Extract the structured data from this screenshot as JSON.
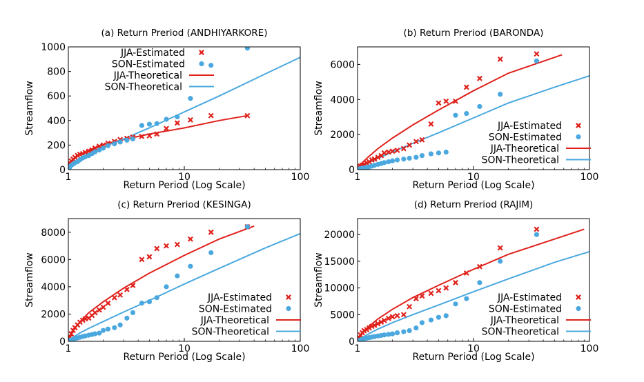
{
  "figure": {
    "jja_color": "#e0211b",
    "son_color": "#4aa8df"
  },
  "chart_data": [
    {
      "type": "scatter",
      "title": "(a) Return Preriod (ANDHIYARKORE)",
      "xlabel": "Return Period (Log Scale)",
      "ylabel": "Streamflow",
      "xscale": "log",
      "xlim": [
        1,
        100
      ],
      "ylim": [
        0,
        1000
      ],
      "xticks": [
        1,
        10,
        100
      ],
      "yticks": [
        0,
        200,
        400,
        600,
        800,
        1000
      ],
      "legend_position": "upper-left",
      "series": [
        {
          "name": "JJA-Estimated",
          "kind": "points",
          "color": "#e0211b",
          "marker": "x",
          "x": [
            1.0,
            1.03,
            1.06,
            1.1,
            1.14,
            1.2,
            1.26,
            1.33,
            1.4,
            1.5,
            1.6,
            1.7,
            1.85,
            2.0,
            2.2,
            2.5,
            2.8,
            3.2,
            3.6,
            4.3,
            5.0,
            5.8,
            7.0,
            8.7,
            11.3,
            17.0,
            35.0
          ],
          "y": [
            40,
            55,
            70,
            85,
            100,
            115,
            125,
            130,
            140,
            150,
            160,
            175,
            190,
            200,
            215,
            230,
            245,
            255,
            265,
            270,
            275,
            290,
            335,
            380,
            405,
            440,
            440
          ]
        },
        {
          "name": "SON-Estimated",
          "kind": "points",
          "color": "#4aa8df",
          "marker": "circle",
          "x": [
            1.0,
            1.03,
            1.06,
            1.1,
            1.14,
            1.2,
            1.26,
            1.33,
            1.4,
            1.5,
            1.6,
            1.7,
            1.85,
            2.0,
            2.2,
            2.5,
            2.8,
            3.2,
            3.6,
            4.3,
            5.0,
            5.8,
            7.0,
            8.7,
            11.3,
            17.0,
            35.0
          ],
          "y": [
            10,
            20,
            35,
            45,
            55,
            65,
            80,
            95,
            105,
            115,
            130,
            145,
            160,
            175,
            195,
            210,
            225,
            240,
            250,
            360,
            370,
            375,
            410,
            430,
            580,
            850,
            990
          ]
        },
        {
          "name": "JJA-Theoretical",
          "kind": "line",
          "color": "#e0211b",
          "x": [
            1.0,
            1.1,
            1.25,
            1.5,
            2.0,
            3.0,
            5.0,
            10.0,
            20.0,
            35.0
          ],
          "y": [
            5,
            80,
            120,
            160,
            205,
            245,
            290,
            340,
            400,
            440
          ]
        },
        {
          "name": "SON-Theoretical",
          "kind": "line",
          "color": "#4aa8df",
          "x": [
            1.0,
            1.1,
            1.25,
            1.5,
            2.0,
            3.0,
            5.0,
            10.0,
            20.0,
            50.0,
            100.0
          ],
          "y": [
            5,
            45,
            85,
            130,
            185,
            250,
            340,
            470,
            600,
            780,
            915
          ]
        }
      ]
    },
    {
      "type": "scatter",
      "title": "(b) Return Preriod (BARONDA)",
      "xlabel": "Return Period (Log Scale)",
      "ylabel": "Streamflow",
      "xscale": "log",
      "xlim": [
        1,
        100
      ],
      "ylim": [
        0,
        7000
      ],
      "xticks": [
        1,
        10,
        100
      ],
      "yticks": [
        0,
        2000,
        4000,
        6000
      ],
      "legend_position": "lower-right",
      "series": [
        {
          "name": "JJA-Estimated",
          "kind": "points",
          "color": "#e0211b",
          "marker": "x",
          "x": [
            1.0,
            1.03,
            1.06,
            1.1,
            1.14,
            1.2,
            1.26,
            1.33,
            1.4,
            1.5,
            1.6,
            1.7,
            1.85,
            2.0,
            2.2,
            2.5,
            2.8,
            3.2,
            3.6,
            4.3,
            5.0,
            5.8,
            7.0,
            8.7,
            11.3,
            17.0,
            35.0
          ],
          "y": [
            100,
            150,
            200,
            250,
            300,
            380,
            450,
            550,
            600,
            700,
            800,
            950,
            1000,
            1050,
            1100,
            1200,
            1400,
            1600,
            1700,
            2600,
            3800,
            3900,
            3900,
            4700,
            5200,
            6300,
            6600
          ]
        },
        {
          "name": "SON-Estimated",
          "kind": "points",
          "color": "#4aa8df",
          "marker": "circle",
          "x": [
            1.0,
            1.03,
            1.06,
            1.1,
            1.14,
            1.2,
            1.26,
            1.33,
            1.4,
            1.5,
            1.6,
            1.7,
            1.85,
            2.0,
            2.2,
            2.5,
            2.8,
            3.2,
            3.6,
            4.3,
            5.0,
            5.8,
            7.0,
            8.7,
            11.3,
            17.0,
            35.0
          ],
          "y": [
            20,
            40,
            60,
            80,
            100,
            130,
            160,
            200,
            250,
            300,
            350,
            400,
            450,
            500,
            550,
            600,
            650,
            700,
            800,
            900,
            950,
            1000,
            3100,
            3200,
            3600,
            4300,
            6200
          ]
        },
        {
          "name": "JJA-Theoretical",
          "kind": "line",
          "color": "#e0211b",
          "x": [
            1.0,
            1.1,
            1.25,
            1.5,
            2.0,
            3.0,
            5.0,
            10.0,
            20.0,
            58.0
          ],
          "y": [
            50,
            400,
            750,
            1200,
            1800,
            2550,
            3400,
            4500,
            5500,
            6550
          ]
        },
        {
          "name": "SON-Theoretical",
          "kind": "line",
          "color": "#4aa8df",
          "x": [
            1.0,
            1.1,
            1.25,
            1.5,
            2.0,
            3.0,
            5.0,
            10.0,
            20.0,
            50.0,
            100.0
          ],
          "y": [
            10,
            200,
            400,
            650,
            1000,
            1500,
            2100,
            2950,
            3800,
            4700,
            5350
          ]
        }
      ]
    },
    {
      "type": "scatter",
      "title": "(c) Return Preriod (KESINGA)",
      "xlabel": "Return Period (Log Scale)",
      "ylabel": "Streamflow",
      "xscale": "log",
      "xlim": [
        1,
        100
      ],
      "ylim": [
        0,
        9000
      ],
      "xticks": [
        1,
        10,
        100
      ],
      "yticks": [
        0,
        2000,
        4000,
        6000,
        8000
      ],
      "legend_position": "lower-right",
      "series": [
        {
          "name": "JJA-Estimated",
          "kind": "points",
          "color": "#e0211b",
          "marker": "x",
          "x": [
            1.0,
            1.03,
            1.06,
            1.1,
            1.14,
            1.2,
            1.26,
            1.33,
            1.4,
            1.5,
            1.6,
            1.7,
            1.85,
            2.0,
            2.2,
            2.5,
            2.8,
            3.2,
            3.6,
            4.3,
            5.0,
            5.8,
            7.0,
            8.7,
            11.3,
            17.0,
            35.0
          ],
          "y": [
            150,
            300,
            550,
            800,
            1000,
            1200,
            1400,
            1550,
            1650,
            1700,
            1900,
            2100,
            2300,
            2500,
            2800,
            3200,
            3400,
            3800,
            4100,
            6000,
            6200,
            6800,
            7000,
            7100,
            7500,
            8000,
            8400
          ]
        },
        {
          "name": "SON-Estimated",
          "kind": "points",
          "color": "#4aa8df",
          "marker": "circle",
          "x": [
            1.0,
            1.03,
            1.06,
            1.1,
            1.14,
            1.2,
            1.26,
            1.33,
            1.4,
            1.5,
            1.6,
            1.7,
            1.85,
            2.0,
            2.2,
            2.5,
            2.8,
            3.2,
            3.6,
            4.3,
            5.0,
            5.8,
            7.0,
            8.7,
            11.3,
            17.0,
            35.0
          ],
          "y": [
            20,
            60,
            100,
            150,
            200,
            250,
            300,
            350,
            400,
            450,
            500,
            550,
            600,
            800,
            900,
            1000,
            1200,
            1700,
            2100,
            2800,
            2900,
            3200,
            4000,
            4800,
            5500,
            6500,
            8400
          ]
        },
        {
          "name": "JJA-Theoretical",
          "kind": "line",
          "color": "#e0211b",
          "x": [
            1.0,
            1.1,
            1.25,
            1.5,
            2.0,
            3.0,
            5.0,
            10.0,
            20.0,
            40.0
          ],
          "y": [
            100,
            800,
            1400,
            2100,
            2900,
            3900,
            5000,
            6300,
            7500,
            8450
          ]
        },
        {
          "name": "SON-Theoretical",
          "kind": "line",
          "color": "#4aa8df",
          "x": [
            1.0,
            1.1,
            1.25,
            1.5,
            2.0,
            3.0,
            5.0,
            10.0,
            20.0,
            50.0,
            100.0
          ],
          "y": [
            10,
            300,
            600,
            950,
            1450,
            2150,
            3000,
            4200,
            5350,
            6850,
            7900
          ]
        }
      ]
    },
    {
      "type": "scatter",
      "title": "(d) Return Preriod (RAJIM)",
      "xlabel": "Return Period (Log Scale)",
      "ylabel": "Streamflow",
      "xscale": "log",
      "xlim": [
        1,
        100
      ],
      "ylim": [
        0,
        23000
      ],
      "xticks": [
        1,
        10,
        100
      ],
      "yticks": [
        0,
        5000,
        10000,
        15000,
        20000
      ],
      "legend_position": "lower-right",
      "series": [
        {
          "name": "JJA-Estimated",
          "kind": "points",
          "color": "#e0211b",
          "marker": "x",
          "x": [
            1.0,
            1.03,
            1.06,
            1.1,
            1.14,
            1.2,
            1.26,
            1.33,
            1.4,
            1.5,
            1.6,
            1.7,
            1.85,
            2.0,
            2.2,
            2.5,
            2.8,
            3.2,
            3.6,
            4.3,
            5.0,
            5.8,
            7.0,
            8.7,
            11.3,
            17.0,
            35.0
          ],
          "y": [
            300,
            700,
            1200,
            1600,
            2000,
            2200,
            2500,
            2800,
            3000,
            3300,
            3600,
            3900,
            4300,
            4600,
            4800,
            5000,
            6500,
            8000,
            8500,
            9000,
            9500,
            10000,
            11000,
            12800,
            14000,
            17500,
            21000
          ]
        },
        {
          "name": "SON-Estimated",
          "kind": "points",
          "color": "#4aa8df",
          "marker": "circle",
          "x": [
            1.0,
            1.03,
            1.06,
            1.1,
            1.14,
            1.2,
            1.26,
            1.33,
            1.4,
            1.5,
            1.6,
            1.7,
            1.85,
            2.0,
            2.2,
            2.5,
            2.8,
            3.2,
            3.6,
            4.3,
            5.0,
            5.8,
            7.0,
            8.7,
            11.3,
            17.0,
            35.0
          ],
          "y": [
            50,
            150,
            250,
            400,
            500,
            600,
            700,
            800,
            900,
            1000,
            1100,
            1200,
            1300,
            1400,
            1600,
            1800,
            2000,
            2500,
            3500,
            4000,
            4500,
            4800,
            7000,
            8000,
            11000,
            15000,
            20000
          ]
        },
        {
          "name": "JJA-Theoretical",
          "kind": "line",
          "color": "#e0211b",
          "x": [
            1.0,
            1.1,
            1.25,
            1.5,
            2.0,
            3.0,
            5.0,
            10.0,
            20.0,
            90.0
          ],
          "y": [
            100,
            1500,
            2800,
            4200,
            6000,
            8200,
            10500,
            13500,
            16300,
            21000
          ]
        },
        {
          "name": "SON-Theoretical",
          "kind": "line",
          "color": "#4aa8df",
          "x": [
            1.0,
            1.1,
            1.25,
            1.5,
            2.0,
            3.0,
            5.0,
            10.0,
            20.0,
            50.0,
            100.0
          ],
          "y": [
            20,
            700,
            1400,
            2300,
            3500,
            5000,
            6800,
            9300,
            11700,
            14800,
            16800
          ]
        }
      ]
    }
  ]
}
